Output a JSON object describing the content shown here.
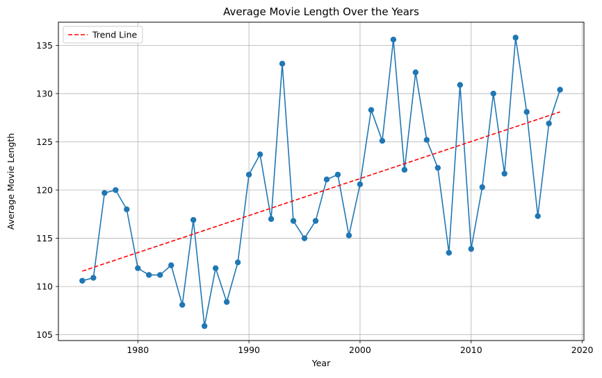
{
  "chart_data": {
    "type": "line",
    "title": "Average Movie Length Over the Years",
    "xlabel": "Year",
    "ylabel": "Average Movie Length",
    "xlim": [
      1972.85,
      2020.15
    ],
    "ylim": [
      104.4,
      137.4
    ],
    "xticks": [
      1980,
      1990,
      2000,
      2010,
      2020
    ],
    "yticks": [
      105,
      110,
      115,
      120,
      125,
      130,
      135
    ],
    "grid": true,
    "legend_position": "top-left",
    "series": [
      {
        "kind": "line-markers",
        "color": "#1f77b4",
        "x": [
          1975,
          1976,
          1977,
          1978,
          1979,
          1980,
          1981,
          1982,
          1983,
          1984,
          1985,
          1986,
          1987,
          1988,
          1989,
          1990,
          1991,
          1992,
          1993,
          1994,
          1995,
          1996,
          1997,
          1998,
          1999,
          2000,
          2001,
          2002,
          2003,
          2004,
          2005,
          2006,
          2007,
          2008,
          2009,
          2010,
          2011,
          2012,
          2013,
          2014,
          2015,
          2016,
          2017,
          2018
        ],
        "y": [
          110.6,
          110.9,
          119.7,
          120.0,
          118.0,
          111.9,
          111.2,
          111.2,
          112.2,
          108.1,
          116.9,
          105.9,
          111.9,
          108.4,
          112.5,
          121.6,
          123.7,
          117.0,
          133.1,
          116.8,
          115.0,
          116.8,
          121.1,
          121.6,
          115.3,
          120.6,
          128.3,
          125.1,
          135.6,
          122.1,
          132.2,
          125.2,
          122.3,
          113.5,
          130.9,
          113.9,
          120.3,
          130.0,
          121.7,
          135.8,
          128.1,
          117.3,
          126.9,
          130.4
        ]
      },
      {
        "kind": "dashed-line",
        "name": "Trend Line",
        "color": "#ff0000",
        "x": [
          1975,
          2018
        ],
        "y": [
          111.6,
          128.1
        ]
      }
    ]
  }
}
